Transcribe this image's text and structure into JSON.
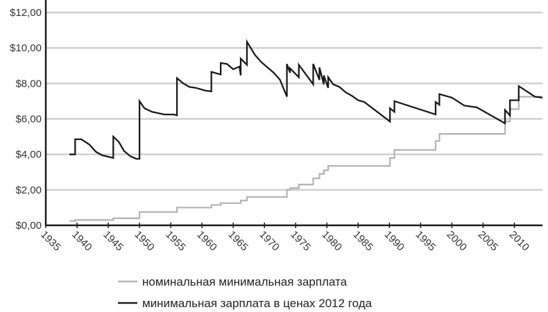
{
  "chart_data": {
    "type": "line",
    "title": "",
    "xlabel": "",
    "ylabel": "",
    "xlim": [
      1935,
      2014.5
    ],
    "ylim": [
      0,
      12
    ],
    "grid": true,
    "legend_placement": "bottom",
    "x_ticks": [
      1935,
      1940,
      1945,
      1950,
      1955,
      1960,
      1965,
      1970,
      1975,
      1980,
      1985,
      1990,
      1995,
      2000,
      2005,
      2010
    ],
    "x_tick_labels": [
      "1935",
      "1940",
      "1945",
      "1950",
      "1955",
      "1960",
      "1965",
      "1970",
      "1975",
      "1980",
      "1985",
      "1990",
      "1995",
      "2000",
      "2005",
      "2010"
    ],
    "y_ticks": [
      0,
      2,
      4,
      6,
      8,
      10,
      12
    ],
    "y_tick_labels": [
      "$0,00",
      "$2,00",
      "$4,00",
      "$6,00",
      "$8,00",
      "$10,00",
      "$12,00"
    ],
    "series": [
      {
        "name": "номинальная минимальная зарплата",
        "color": "#b5b5b5",
        "points": [
          [
            1938.8,
            0.25
          ],
          [
            1939.7,
            0.25
          ],
          [
            1939.7,
            0.3
          ],
          [
            1945.8,
            0.3
          ],
          [
            1945.8,
            0.4
          ],
          [
            1950,
            0.4
          ],
          [
            1950,
            0.75
          ],
          [
            1956,
            0.75
          ],
          [
            1956,
            1.0
          ],
          [
            1961.5,
            1.0
          ],
          [
            1961.5,
            1.15
          ],
          [
            1963,
            1.15
          ],
          [
            1963,
            1.25
          ],
          [
            1966.2,
            1.25
          ],
          [
            1966.2,
            1.4
          ],
          [
            1967.2,
            1.4
          ],
          [
            1967.2,
            1.6
          ],
          [
            1973.6,
            1.6
          ],
          [
            1973.6,
            2.0
          ],
          [
            1974.1,
            2.0
          ],
          [
            1974.1,
            2.1
          ],
          [
            1975.5,
            2.1
          ],
          [
            1975.5,
            2.3
          ],
          [
            1977.8,
            2.3
          ],
          [
            1977.8,
            2.65
          ],
          [
            1978.8,
            2.65
          ],
          [
            1978.8,
            2.9
          ],
          [
            1979.5,
            2.9
          ],
          [
            1979.5,
            3.1
          ],
          [
            1980.2,
            3.1
          ],
          [
            1980.2,
            3.35
          ],
          [
            1990.1,
            3.35
          ],
          [
            1990.1,
            3.8
          ],
          [
            1990.8,
            3.8
          ],
          [
            1990.8,
            4.25
          ],
          [
            1997.4,
            4.25
          ],
          [
            1997.4,
            4.75
          ],
          [
            1998,
            4.75
          ],
          [
            1998,
            5.15
          ],
          [
            2008.5,
            5.15
          ],
          [
            2008.5,
            5.85
          ],
          [
            2009.3,
            5.85
          ],
          [
            2009.3,
            6.55
          ],
          [
            2010.7,
            6.55
          ],
          [
            2010.7,
            7.25
          ],
          [
            2014.5,
            7.25
          ]
        ]
      },
      {
        "name": "минимальная зарплата в ценах 2012 года",
        "color": "#1a1a1a",
        "points": [
          [
            1938.8,
            4.0
          ],
          [
            1939.7,
            4.0
          ],
          [
            1939.7,
            4.85
          ],
          [
            1940.7,
            4.85
          ],
          [
            1942,
            4.55
          ],
          [
            1943,
            4.15
          ],
          [
            1944,
            3.95
          ],
          [
            1945.8,
            3.8
          ],
          [
            1945.8,
            5.0
          ],
          [
            1946.7,
            4.7
          ],
          [
            1947.5,
            4.2
          ],
          [
            1948.5,
            3.9
          ],
          [
            1949.5,
            3.75
          ],
          [
            1950,
            3.75
          ],
          [
            1950,
            7.0
          ],
          [
            1950.8,
            6.6
          ],
          [
            1952,
            6.4
          ],
          [
            1954,
            6.25
          ],
          [
            1955.5,
            6.25
          ],
          [
            1956,
            6.2
          ],
          [
            1956,
            8.3
          ],
          [
            1957,
            8.0
          ],
          [
            1958,
            7.8
          ],
          [
            1959,
            7.75
          ],
          [
            1960.5,
            7.6
          ],
          [
            1961.5,
            7.55
          ],
          [
            1961.5,
            8.65
          ],
          [
            1963,
            8.5
          ],
          [
            1963,
            9.15
          ],
          [
            1964,
            9.1
          ],
          [
            1965,
            8.8
          ],
          [
            1966,
            8.95
          ],
          [
            1966.2,
            8.45
          ],
          [
            1966.2,
            9.4
          ],
          [
            1967.2,
            9.05
          ],
          [
            1967.2,
            10.35
          ],
          [
            1968.5,
            9.6
          ],
          [
            1969.5,
            9.2
          ],
          [
            1970.5,
            8.9
          ],
          [
            1971.5,
            8.6
          ],
          [
            1972.5,
            8.2
          ],
          [
            1973.6,
            7.25
          ],
          [
            1973.6,
            9.1
          ],
          [
            1974.1,
            8.6
          ],
          [
            1974.1,
            8.85
          ],
          [
            1975.5,
            8.35
          ],
          [
            1975.5,
            9.05
          ],
          [
            1977.8,
            7.95
          ],
          [
            1977.8,
            9.1
          ],
          [
            1978.8,
            8.2
          ],
          [
            1978.8,
            8.9
          ],
          [
            1979.5,
            7.95
          ],
          [
            1979.5,
            8.45
          ],
          [
            1980.2,
            7.75
          ],
          [
            1980.2,
            8.35
          ],
          [
            1981,
            7.95
          ],
          [
            1982,
            7.8
          ],
          [
            1983,
            7.5
          ],
          [
            1984,
            7.3
          ],
          [
            1985,
            7.05
          ],
          [
            1986,
            6.95
          ],
          [
            1990.1,
            5.85
          ],
          [
            1990.1,
            6.6
          ],
          [
            1990.8,
            6.4
          ],
          [
            1990.8,
            7.0
          ],
          [
            1997.4,
            6.25
          ],
          [
            1997.4,
            6.95
          ],
          [
            1998,
            6.8
          ],
          [
            1998,
            7.4
          ],
          [
            2000,
            7.2
          ],
          [
            2002,
            6.75
          ],
          [
            2004,
            6.65
          ],
          [
            2008.5,
            5.75
          ],
          [
            2008.5,
            6.5
          ],
          [
            2009.3,
            6.2
          ],
          [
            2009.3,
            7.05
          ],
          [
            2010.7,
            7.05
          ],
          [
            2010.7,
            7.85
          ],
          [
            2012,
            7.55
          ],
          [
            2013.3,
            7.25
          ],
          [
            2014.5,
            7.2
          ]
        ]
      }
    ]
  }
}
